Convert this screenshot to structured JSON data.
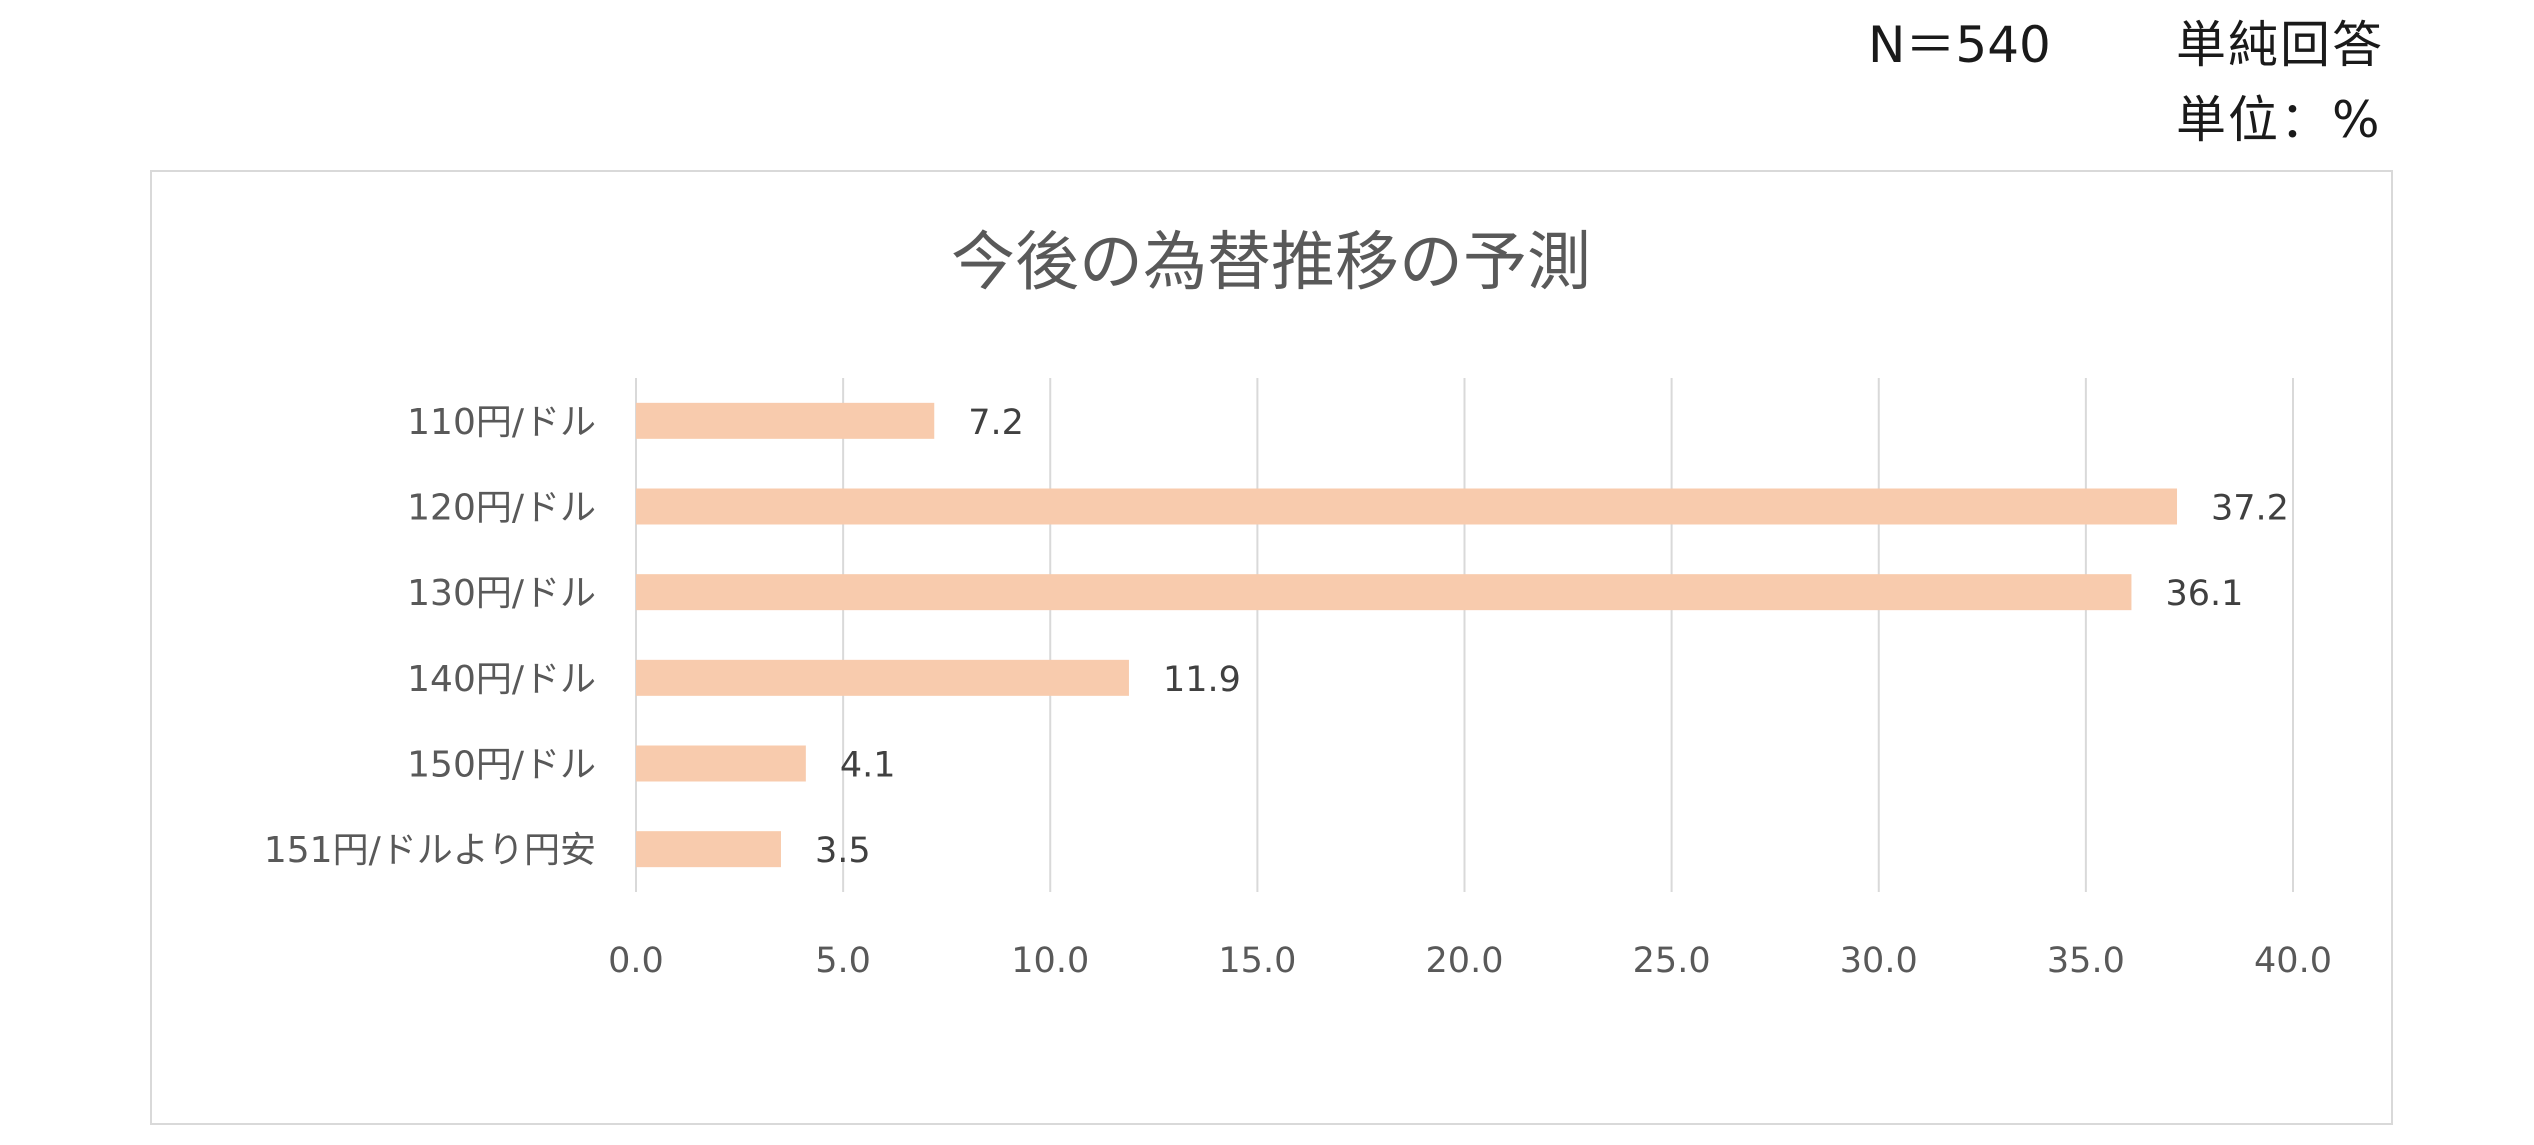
{
  "header": {
    "sample_size": "N＝540",
    "answer_type": "単純回答",
    "unit": "単位：%"
  },
  "chart_data": {
    "type": "bar",
    "orientation": "horizontal",
    "title": "今後の為替推移の予測",
    "categories": [
      "110円/ドル",
      "120円/ドル",
      "130円/ドル",
      "140円/ドル",
      "150円/ドル",
      "151円/ドルより円安"
    ],
    "values": [
      7.2,
      37.2,
      36.1,
      11.9,
      4.1,
      3.5
    ],
    "value_labels": [
      "7.2",
      "37.2",
      "36.1",
      "11.9",
      "4.1",
      "3.5"
    ],
    "xlim": [
      0,
      40
    ],
    "xticks": [
      0,
      5,
      10,
      15,
      20,
      25,
      30,
      35,
      40
    ],
    "xtick_labels": [
      "0.0",
      "5.0",
      "10.0",
      "15.0",
      "20.0",
      "25.0",
      "30.0",
      "35.0",
      "40.0"
    ],
    "grid": "vertical",
    "legend": "none",
    "bar_color": "#f8cbad",
    "grid_color": "#d9d9d9"
  }
}
